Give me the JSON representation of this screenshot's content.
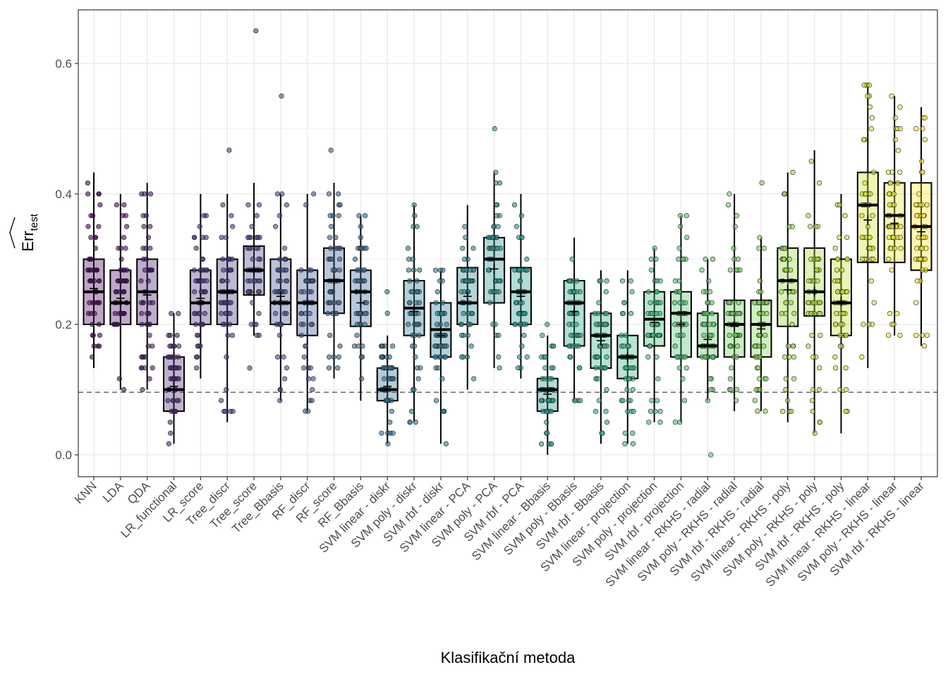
{
  "chart_data": {
    "type": "boxplot",
    "title": "",
    "xlabel": "Klasifikační metoda",
    "ylabel": "Err_test (hat)",
    "ylabel_main": "Err",
    "ylabel_sub": "test",
    "ylim": [
      -0.03,
      0.68
    ],
    "yticks": [
      0.0,
      0.2,
      0.4,
      0.6
    ],
    "ytick_labels": [
      "0.0",
      "0.2",
      "0.4",
      "0.6"
    ],
    "grid": true,
    "reference_line": {
      "value": 0.096,
      "style": "dashed"
    },
    "colormap": "viridis",
    "categories": [
      "KNN",
      "LDA",
      "QDA",
      "LR_functional",
      "LR_score",
      "Tree_discr",
      "Tree_score",
      "Tree_Bbasis",
      "RF_discr",
      "RF_score",
      "RF_Bbasis",
      "SVM linear - diskr",
      "SVM poly - diskr",
      "SVM rbf - diskr",
      "SVM linear - PCA",
      "SVM poly - PCA",
      "SVM rbf - PCA",
      "SVM linear - Bbasis",
      "SVM poly - Bbasis",
      "SVM rbf - Bbasis",
      "SVM linear - projection",
      "SVM poly - projection",
      "SVM rbf - projection",
      "SVM linear - RKHS - radial",
      "SVM poly - RKHS - radial",
      "SVM rbf - RKHS - radial",
      "SVM linear - RKHS - poly",
      "SVM poly - RKHS - poly",
      "SVM rbf - RKHS - poly",
      "SVM linear - RKHS - linear",
      "SVM poly - RKHS - linear",
      "SVM rbf - RKHS - linear"
    ],
    "boxes": [
      {
        "q1": 0.2,
        "median": 0.25,
        "q3": 0.3,
        "mean": 0.255,
        "whisker_low": 0.133,
        "whisker_high": 0.433,
        "outliers": []
      },
      {
        "q1": 0.2,
        "median": 0.233,
        "q3": 0.283,
        "mean": 0.24,
        "whisker_low": 0.1,
        "whisker_high": 0.4,
        "outliers": []
      },
      {
        "q1": 0.2,
        "median": 0.25,
        "q3": 0.3,
        "mean": 0.245,
        "whisker_low": 0.1,
        "whisker_high": 0.417,
        "outliers": []
      },
      {
        "q1": 0.067,
        "median": 0.1,
        "q3": 0.15,
        "mean": 0.105,
        "whisker_low": 0.017,
        "whisker_high": 0.217,
        "outliers": []
      },
      {
        "q1": 0.2,
        "median": 0.233,
        "q3": 0.283,
        "mean": 0.24,
        "whisker_low": 0.117,
        "whisker_high": 0.4,
        "outliers": []
      },
      {
        "q1": 0.2,
        "median": 0.25,
        "q3": 0.3,
        "mean": 0.25,
        "whisker_low": 0.05,
        "whisker_high": 0.4,
        "outliers": [
          0.467
        ]
      },
      {
        "q1": 0.245,
        "median": 0.283,
        "q3": 0.32,
        "mean": 0.283,
        "whisker_low": 0.183,
        "whisker_high": 0.417,
        "outliers": [
          0.65,
          0.133
        ]
      },
      {
        "q1": 0.2,
        "median": 0.233,
        "q3": 0.3,
        "mean": 0.243,
        "whisker_low": 0.083,
        "whisker_high": 0.4,
        "outliers": [
          0.55
        ]
      },
      {
        "q1": 0.183,
        "median": 0.233,
        "q3": 0.283,
        "mean": 0.233,
        "whisker_low": 0.067,
        "whisker_high": 0.4,
        "outliers": []
      },
      {
        "q1": 0.217,
        "median": 0.267,
        "q3": 0.317,
        "mean": 0.267,
        "whisker_low": 0.117,
        "whisker_high": 0.417,
        "outliers": [
          0.467
        ]
      },
      {
        "q1": 0.197,
        "median": 0.25,
        "q3": 0.283,
        "mean": 0.233,
        "whisker_low": 0.083,
        "whisker_high": 0.367,
        "outliers": []
      },
      {
        "q1": 0.083,
        "median": 0.1,
        "q3": 0.133,
        "mean": 0.105,
        "whisker_low": 0.017,
        "whisker_high": 0.183,
        "outliers": [
          0.217,
          0.25
        ]
      },
      {
        "q1": 0.183,
        "median": 0.225,
        "q3": 0.267,
        "mean": 0.22,
        "whisker_low": 0.05,
        "whisker_high": 0.383,
        "outliers": []
      },
      {
        "q1": 0.15,
        "median": 0.192,
        "q3": 0.233,
        "mean": 0.183,
        "whisker_low": 0.017,
        "whisker_high": 0.283,
        "outliers": []
      },
      {
        "q1": 0.2,
        "median": 0.233,
        "q3": 0.287,
        "mean": 0.243,
        "whisker_low": 0.1,
        "whisker_high": 0.383,
        "outliers": []
      },
      {
        "q1": 0.233,
        "median": 0.3,
        "q3": 0.333,
        "mean": 0.285,
        "whisker_low": 0.133,
        "whisker_high": 0.433,
        "outliers": [
          0.5
        ]
      },
      {
        "q1": 0.2,
        "median": 0.25,
        "q3": 0.287,
        "mean": 0.243,
        "whisker_low": 0.117,
        "whisker_high": 0.4,
        "outliers": []
      },
      {
        "q1": 0.067,
        "median": 0.1,
        "q3": 0.117,
        "mean": 0.093,
        "whisker_low": 0.0,
        "whisker_high": 0.183,
        "outliers": [
          0.2
        ]
      },
      {
        "q1": 0.167,
        "median": 0.233,
        "q3": 0.267,
        "mean": 0.22,
        "whisker_low": 0.083,
        "whisker_high": 0.333,
        "outliers": []
      },
      {
        "q1": 0.133,
        "median": 0.183,
        "q3": 0.217,
        "mean": 0.175,
        "whisker_low": 0.017,
        "whisker_high": 0.283,
        "outliers": []
      },
      {
        "q1": 0.117,
        "median": 0.15,
        "q3": 0.183,
        "mean": 0.15,
        "whisker_low": 0.017,
        "whisker_high": 0.283,
        "outliers": []
      },
      {
        "q1": 0.167,
        "median": 0.208,
        "q3": 0.25,
        "mean": 0.203,
        "whisker_low": 0.05,
        "whisker_high": 0.317,
        "outliers": []
      },
      {
        "q1": 0.15,
        "median": 0.217,
        "q3": 0.25,
        "mean": 0.2,
        "whisker_low": 0.05,
        "whisker_high": 0.367,
        "outliers": []
      },
      {
        "q1": 0.15,
        "median": 0.167,
        "q3": 0.217,
        "mean": 0.177,
        "whisker_low": 0.083,
        "whisker_high": 0.3,
        "outliers": [
          0.0
        ]
      },
      {
        "q1": 0.15,
        "median": 0.2,
        "q3": 0.237,
        "mean": 0.197,
        "whisker_low": 0.067,
        "whisker_high": 0.4,
        "outliers": []
      },
      {
        "q1": 0.15,
        "median": 0.2,
        "q3": 0.237,
        "mean": 0.193,
        "whisker_low": 0.067,
        "whisker_high": 0.333,
        "outliers": [
          0.417
        ]
      },
      {
        "q1": 0.197,
        "median": 0.267,
        "q3": 0.317,
        "mean": 0.253,
        "whisker_low": 0.05,
        "whisker_high": 0.433,
        "outliers": []
      },
      {
        "q1": 0.213,
        "median": 0.25,
        "q3": 0.317,
        "mean": 0.25,
        "whisker_low": 0.033,
        "whisker_high": 0.467,
        "outliers": []
      },
      {
        "q1": 0.183,
        "median": 0.233,
        "q3": 0.3,
        "mean": 0.235,
        "whisker_low": 0.033,
        "whisker_high": 0.4,
        "outliers": []
      },
      {
        "q1": 0.295,
        "median": 0.383,
        "q3": 0.433,
        "mean": 0.36,
        "whisker_low": 0.133,
        "whisker_high": 0.567,
        "outliers": []
      },
      {
        "q1": 0.295,
        "median": 0.367,
        "q3": 0.417,
        "mean": 0.355,
        "whisker_low": 0.183,
        "whisker_high": 0.55,
        "outliers": []
      },
      {
        "q1": 0.283,
        "median": 0.35,
        "q3": 0.417,
        "mean": 0.342,
        "whisker_low": 0.167,
        "whisker_high": 0.533,
        "outliers": []
      }
    ]
  },
  "colors": {
    "panel_border": "#333333",
    "grid": "#ebebeb",
    "box_outline": "#000000",
    "reference_line": "#666666"
  }
}
